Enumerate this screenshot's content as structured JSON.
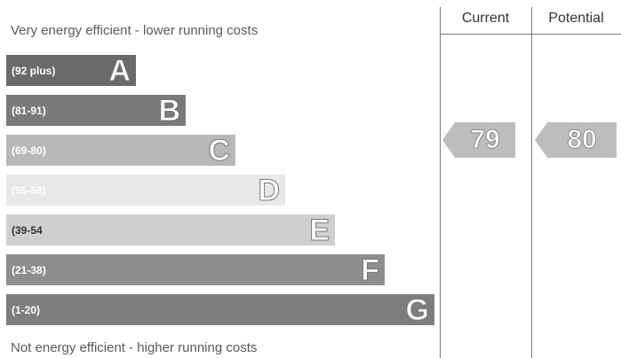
{
  "chart_data": {
    "type": "bar",
    "title": "",
    "top_caption": "Very energy efficient - lower running costs",
    "bottom_caption": "Not energy efficient - higher running costs",
    "columns": [
      "Current",
      "Potential"
    ],
    "bands": [
      {
        "letter": "A",
        "range": "(92 plus)",
        "min": 92,
        "max": 100,
        "color": "#6a6a6a",
        "text_color": "#ffffff"
      },
      {
        "letter": "B",
        "range": "(81-91)",
        "min": 81,
        "max": 91,
        "color": "#7a7a7a",
        "text_color": "#ffffff"
      },
      {
        "letter": "C",
        "range": "(69-80)",
        "min": 69,
        "max": 80,
        "color": "#b8b8b8",
        "text_color": "#ffffff"
      },
      {
        "letter": "D",
        "range": "(55-68)",
        "min": 55,
        "max": 68,
        "color": "#e8e8e8",
        "text_color": "#ffffff"
      },
      {
        "letter": "E",
        "range": "(39-54",
        "min": 39,
        "max": 54,
        "color": "#cfcfcf",
        "text_color": "#333333"
      },
      {
        "letter": "F",
        "range": "(21-38)",
        "min": 21,
        "max": 38,
        "color": "#8e8e8e",
        "text_color": "#ffffff"
      },
      {
        "letter": "G",
        "range": "(1-20)",
        "min": 1,
        "max": 20,
        "color": "#7e7e7e",
        "text_color": "#ffffff"
      }
    ],
    "values": {
      "current": 79,
      "potential": 80
    },
    "current_label": "79",
    "potential_label": "80",
    "arrow_color": "#bdbdbd"
  }
}
